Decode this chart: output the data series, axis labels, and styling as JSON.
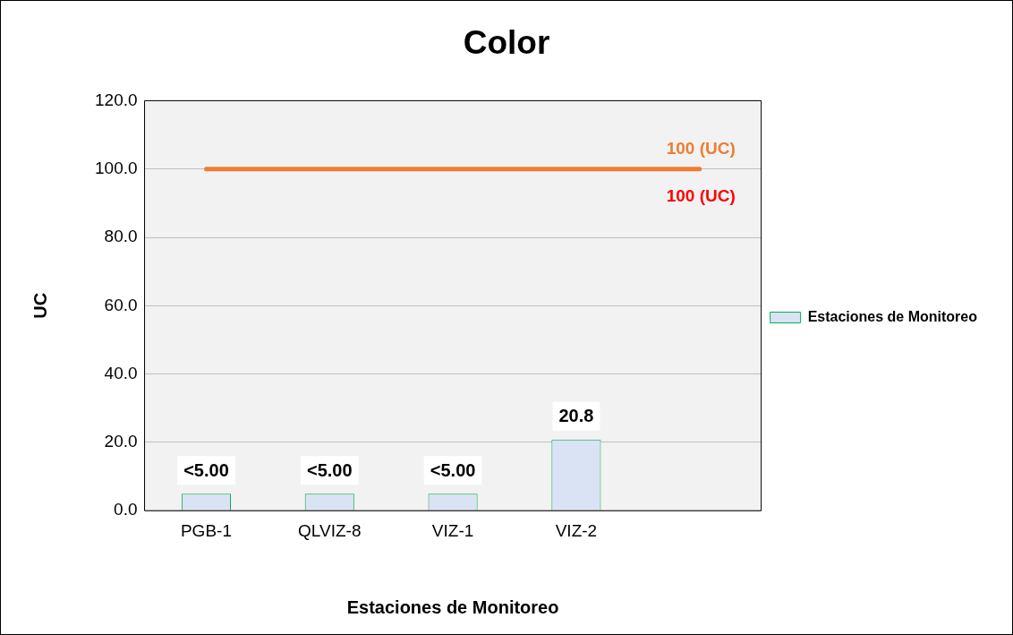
{
  "chart_data": {
    "type": "bar",
    "title": "Color",
    "xlabel": "Estaciones de Monitoreo",
    "ylabel": "UC",
    "categories": [
      "PGB-1",
      "QLVIZ-8",
      "VIZ-1",
      "VIZ-2",
      null
    ],
    "series": [
      {
        "name": "Estaciones de Monitoreo",
        "color": "#dae3f3",
        "values": [
          5,
          5,
          5,
          20.8,
          null
        ],
        "value_labels": [
          "<5.00",
          "<5.00",
          "<5.00",
          "20.8",
          null
        ]
      }
    ],
    "ylim": [
      0,
      120
    ],
    "yticks": [
      {
        "value": 0,
        "label": "0.0"
      },
      {
        "value": 20,
        "label": "20.0"
      },
      {
        "value": 40,
        "label": "40.0"
      },
      {
        "value": 60,
        "label": "60.0"
      },
      {
        "value": 80,
        "label": "80.0"
      },
      {
        "value": 100,
        "label": "100.0"
      },
      {
        "value": 120,
        "label": "120.0"
      }
    ],
    "ref_lines": [
      {
        "axis": "y",
        "value": 100,
        "label": "100 (UC)",
        "color": "#ed7d31"
      }
    ],
    "annotations": [
      {
        "text": "100 (UC)",
        "y": 100
      }
    ],
    "grid": "y",
    "legend": "right"
  }
}
